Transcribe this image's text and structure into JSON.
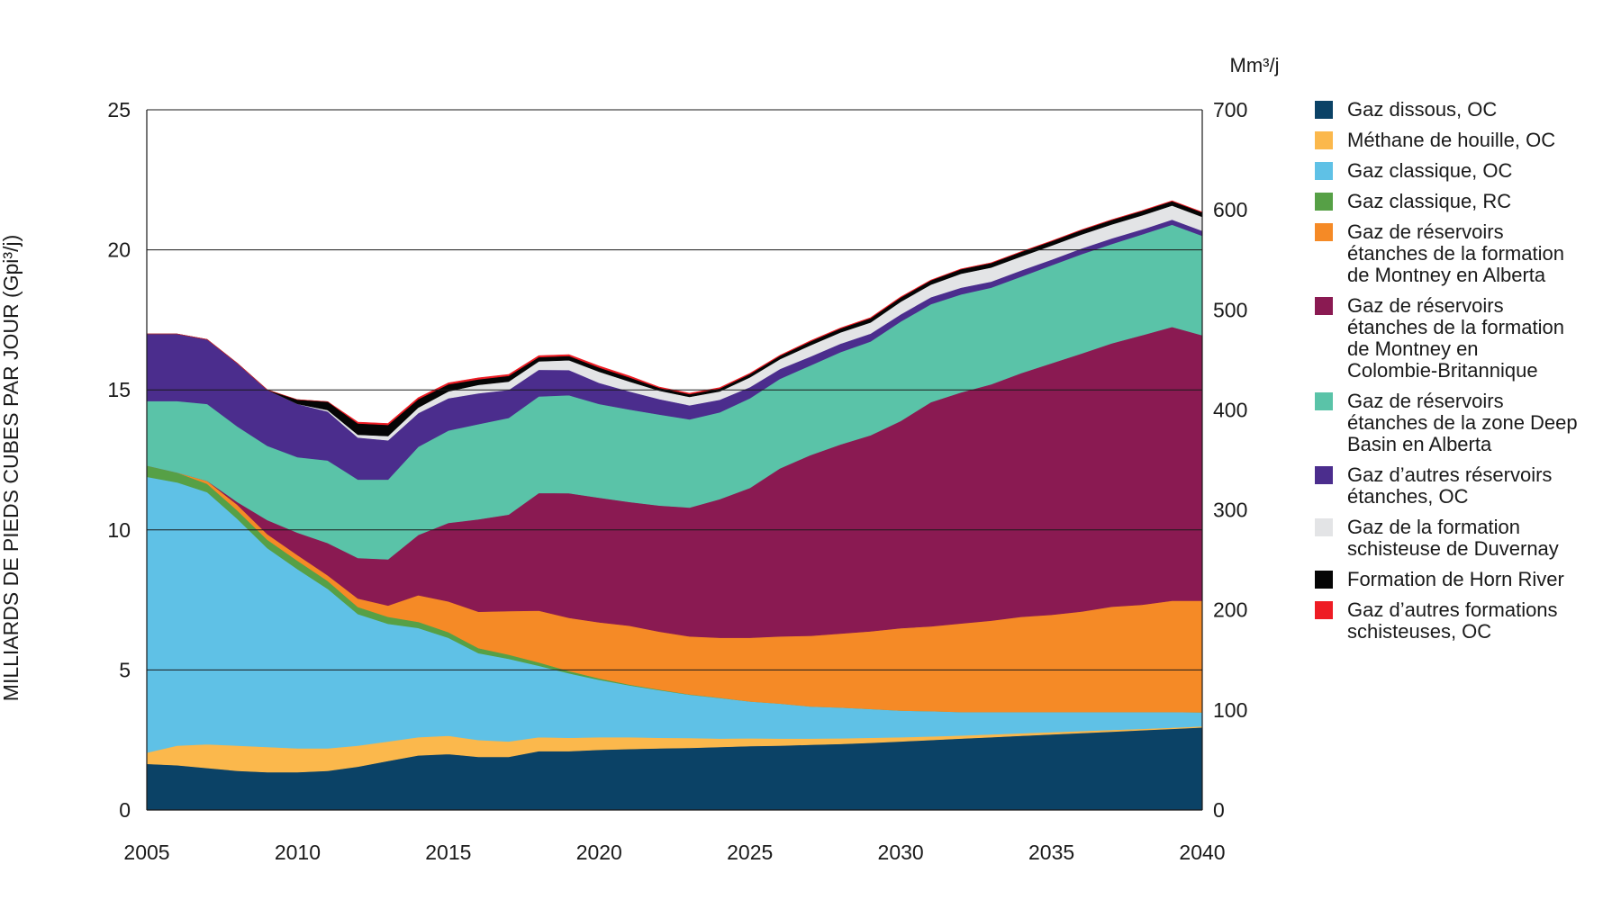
{
  "chart_data": {
    "type": "area",
    "stacked": true,
    "ylabel": "MILLIARDS DE PIEDS CUBES PAR JOUR (Gpi³/j)",
    "y2label": "Mm³/j",
    "xlim": [
      2005,
      2040
    ],
    "ylim": [
      0,
      25
    ],
    "y2lim": [
      0,
      700
    ],
    "x_ticks": [
      "2005",
      "2010",
      "2015",
      "2020",
      "2025",
      "2030",
      "2035",
      "2040"
    ],
    "y_ticks": [
      "0",
      "5",
      "10",
      "15",
      "20",
      "25"
    ],
    "y2_ticks": [
      "0",
      "100",
      "200",
      "300",
      "400",
      "500",
      "600",
      "700"
    ],
    "grid": true,
    "legend_position": "right",
    "x": [
      2005,
      2006,
      2007,
      2008,
      2009,
      2010,
      2011,
      2012,
      2013,
      2014,
      2015,
      2016,
      2017,
      2018,
      2019,
      2020,
      2021,
      2022,
      2023,
      2024,
      2025,
      2026,
      2027,
      2028,
      2029,
      2030,
      2031,
      2032,
      2033,
      2034,
      2035,
      2036,
      2037,
      2038,
      2039,
      2040
    ],
    "series": [
      {
        "name": "Gaz dissous, OC",
        "color": "#0b4266",
        "values": [
          1.65,
          1.6,
          1.5,
          1.4,
          1.35,
          1.35,
          1.4,
          1.55,
          1.75,
          1.95,
          2.0,
          1.9,
          1.9,
          2.1,
          2.1,
          2.15,
          2.18,
          2.2,
          2.22,
          2.25,
          2.28,
          2.3,
          2.33,
          2.36,
          2.4,
          2.45,
          2.5,
          2.55,
          2.6,
          2.65,
          2.7,
          2.75,
          2.8,
          2.85,
          2.9,
          2.95
        ]
      },
      {
        "name": "Méthane de houille, OC",
        "color": "#fbb84c",
        "values": [
          0.4,
          0.7,
          0.85,
          0.9,
          0.9,
          0.85,
          0.8,
          0.75,
          0.7,
          0.65,
          0.65,
          0.6,
          0.55,
          0.5,
          0.48,
          0.45,
          0.42,
          0.38,
          0.35,
          0.3,
          0.28,
          0.25,
          0.22,
          0.2,
          0.18,
          0.15,
          0.13,
          0.11,
          0.1,
          0.09,
          0.08,
          0.07,
          0.06,
          0.05,
          0.04,
          0.04
        ]
      },
      {
        "name": "Gaz classique, OC",
        "color": "#5fc1e6",
        "values": [
          9.85,
          9.4,
          9.0,
          8.1,
          7.1,
          6.4,
          5.7,
          4.7,
          4.2,
          3.9,
          3.5,
          3.1,
          2.95,
          2.55,
          2.3,
          2.05,
          1.85,
          1.7,
          1.55,
          1.45,
          1.32,
          1.25,
          1.15,
          1.1,
          1.03,
          0.95,
          0.9,
          0.84,
          0.8,
          0.76,
          0.72,
          0.68,
          0.64,
          0.6,
          0.56,
          0.5
        ]
      },
      {
        "name": "Gaz classique, RC",
        "color": "#56a046",
        "values": [
          0.4,
          0.35,
          0.3,
          0.3,
          0.3,
          0.3,
          0.28,
          0.25,
          0.25,
          0.22,
          0.2,
          0.18,
          0.15,
          0.12,
          0.08,
          0.05,
          0.03,
          0.02,
          0.01,
          0.01,
          0,
          0,
          0,
          0,
          0,
          0,
          0,
          0,
          0,
          0,
          0,
          0,
          0,
          0,
          0,
          0
        ]
      },
      {
        "name": "Gaz de réservoirs\nétanches de la formation\nde Montney en Alberta",
        "color": "#f58a26",
        "values": [
          0,
          0,
          0.1,
          0.2,
          0.2,
          0.2,
          0.2,
          0.3,
          0.4,
          0.95,
          1.1,
          1.3,
          1.55,
          1.85,
          1.9,
          2.0,
          2.1,
          2.07,
          2.07,
          2.14,
          2.27,
          2.4,
          2.52,
          2.64,
          2.77,
          2.94,
          3.03,
          3.16,
          3.26,
          3.4,
          3.47,
          3.59,
          3.76,
          3.83,
          3.97,
          3.98
        ]
      },
      {
        "name": "Gaz de réservoirs\nétanches de la formation\nde Montney en\nColombie-Britannique",
        "color": "#8a1a52",
        "values": [
          0,
          0,
          0,
          0.1,
          0.5,
          0.8,
          1.15,
          1.45,
          1.65,
          2.15,
          2.8,
          3.3,
          3.45,
          4.2,
          4.45,
          4.45,
          4.42,
          4.5,
          4.6,
          4.95,
          5.35,
          6.0,
          6.45,
          6.75,
          7.0,
          7.4,
          8.0,
          8.25,
          8.44,
          8.7,
          8.98,
          9.21,
          9.4,
          9.62,
          9.78,
          9.48
        ]
      },
      {
        "name": "Gaz de réservoirs\nétanches de la zone Deep\nBasin en Alberta",
        "color": "#5ac3a8",
        "values": [
          2.3,
          2.55,
          2.75,
          2.7,
          2.65,
          2.7,
          2.95,
          2.8,
          2.85,
          3.15,
          3.3,
          3.4,
          3.45,
          3.45,
          3.5,
          3.35,
          3.3,
          3.25,
          3.15,
          3.1,
          3.2,
          3.2,
          3.2,
          3.3,
          3.35,
          3.55,
          3.5,
          3.5,
          3.45,
          3.45,
          3.5,
          3.55,
          3.55,
          3.6,
          3.65,
          3.55
        ]
      },
      {
        "name": "Gaz d’autres réservoirs\nétanches, OC",
        "color": "#4b2d8d",
        "values": [
          2.4,
          2.4,
          2.3,
          2.25,
          2.0,
          1.9,
          1.75,
          1.5,
          1.4,
          1.2,
          1.15,
          1.1,
          1.0,
          0.95,
          0.9,
          0.75,
          0.65,
          0.55,
          0.5,
          0.45,
          0.4,
          0.35,
          0.32,
          0.3,
          0.28,
          0.26,
          0.25,
          0.24,
          0.22,
          0.22,
          0.2,
          0.2,
          0.2,
          0.18,
          0.18,
          0.18
        ]
      },
      {
        "name": "Gaz de la formation\nschisteuse de Duvernay",
        "color": "#e3e4e6",
        "values": [
          0,
          0,
          0,
          0,
          0,
          0,
          0.05,
          0.1,
          0.15,
          0.2,
          0.25,
          0.3,
          0.3,
          0.3,
          0.35,
          0.4,
          0.35,
          0.3,
          0.3,
          0.3,
          0.35,
          0.35,
          0.4,
          0.4,
          0.4,
          0.45,
          0.45,
          0.5,
          0.5,
          0.5,
          0.5,
          0.5,
          0.5,
          0.5,
          0.5,
          0.5
        ]
      },
      {
        "name": "Formation de Horn River",
        "color": "#050505",
        "values": [
          0,
          0,
          0,
          0,
          0,
          0.15,
          0.3,
          0.4,
          0.4,
          0.3,
          0.25,
          0.2,
          0.2,
          0.15,
          0.15,
          0.15,
          0.15,
          0.1,
          0.1,
          0.1,
          0.12,
          0.12,
          0.14,
          0.14,
          0.15,
          0.15,
          0.15,
          0.16,
          0.16,
          0.16,
          0.16,
          0.16,
          0.16,
          0.16,
          0.16,
          0.16
        ]
      },
      {
        "name": "Gaz d’autres formations\nschisteuses, OC",
        "color": "#ee1c24",
        "values": [
          0,
          0,
          0,
          0,
          0,
          0,
          0,
          0.05,
          0.05,
          0.05,
          0.05,
          0.05,
          0.05,
          0.05,
          0.05,
          0.05,
          0.05,
          0.03,
          0.03,
          0.03,
          0.02,
          0.02,
          0.02,
          0.02,
          0.02,
          0.02,
          0.01,
          0.01,
          0.01,
          0.01,
          0.01,
          0.01,
          0.01,
          0.01,
          0.01,
          0.01
        ]
      }
    ]
  }
}
